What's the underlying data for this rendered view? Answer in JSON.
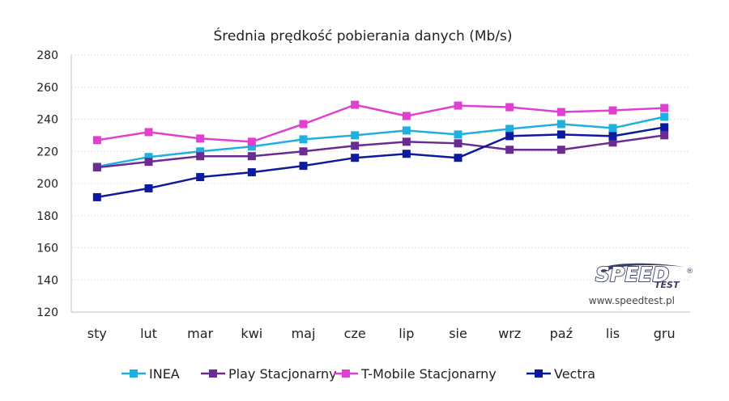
{
  "chart_data": {
    "type": "line",
    "title": "Średnia prędkość pobierania danych (Mb/s)",
    "xlabel": "",
    "ylabel": "",
    "categories": [
      "sty",
      "lut",
      "mar",
      "kwi",
      "maj",
      "cze",
      "lip",
      "sie",
      "wrz",
      "paź",
      "lis",
      "gru"
    ],
    "ylim": [
      120,
      280
    ],
    "yticks": [
      120,
      140,
      160,
      180,
      200,
      220,
      240,
      260,
      280
    ],
    "grid": true,
    "legend_position": "bottom",
    "series": [
      {
        "name": "INEA",
        "color": "#1fb0e0",
        "values": [
          210.5,
          216.5,
          220,
          223,
          227.5,
          230,
          233,
          230.5,
          234,
          237,
          234.5,
          241.5
        ]
      },
      {
        "name": "Play Stacjonarny",
        "color": "#6a2c91",
        "values": [
          210,
          213.5,
          217,
          217,
          220,
          223.5,
          226,
          225,
          221,
          221,
          225.5,
          230
        ]
      },
      {
        "name": "T-Mobile Stacjonarny",
        "color": "#e040d0",
        "values": [
          227,
          232,
          228,
          226,
          237,
          249,
          242,
          248.5,
          247.5,
          244.5,
          245.5,
          247
        ]
      },
      {
        "name": "Vectra",
        "color": "#0d1a9e",
        "values": [
          191.5,
          197,
          204,
          207,
          211,
          216,
          218.5,
          216,
          229.5,
          230.5,
          229.5,
          235
        ]
      }
    ]
  },
  "watermark": {
    "logo_word": "SPEED",
    "logo_subword": "TEST",
    "logo_mark": "®",
    "url": "www.speedtest.pl"
  }
}
